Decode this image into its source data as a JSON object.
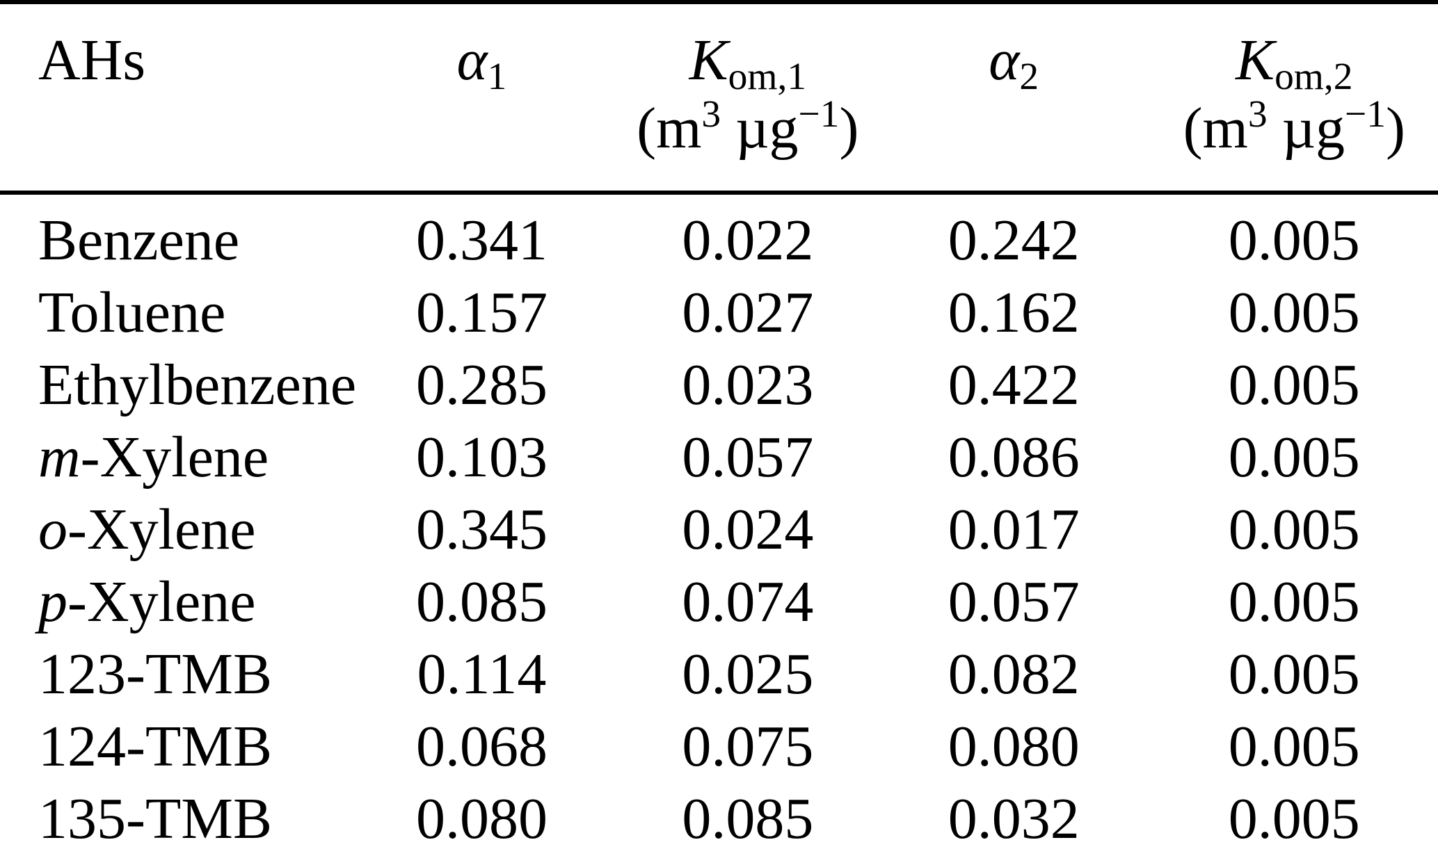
{
  "table": {
    "header": {
      "ahs": "AHs",
      "alpha1": {
        "base": "α",
        "sub": "1"
      },
      "kom1": {
        "base": "K",
        "sub": "om,1"
      },
      "alpha2": {
        "base": "α",
        "sub": "2"
      },
      "kom2": {
        "base": "K",
        "sub": "om,2"
      },
      "unit": {
        "open": "(m",
        "exp": "3",
        "mid": " µg",
        "neg_exp": "−1",
        "close": ")"
      }
    },
    "rows": [
      {
        "prefix": "",
        "rest": "Benzene",
        "alpha1": "0.341",
        "kom1": "0.022",
        "alpha2": "0.242",
        "kom2": "0.005"
      },
      {
        "prefix": "",
        "rest": "Toluene",
        "alpha1": "0.157",
        "kom1": "0.027",
        "alpha2": "0.162",
        "kom2": "0.005"
      },
      {
        "prefix": "",
        "rest": "Ethylbenzene",
        "alpha1": "0.285",
        "kom1": "0.023",
        "alpha2": "0.422",
        "kom2": "0.005"
      },
      {
        "prefix": "m",
        "rest": "-Xylene",
        "alpha1": "0.103",
        "kom1": "0.057",
        "alpha2": "0.086",
        "kom2": "0.005"
      },
      {
        "prefix": "o",
        "rest": "-Xylene",
        "alpha1": "0.345",
        "kom1": "0.024",
        "alpha2": "0.017",
        "kom2": "0.005"
      },
      {
        "prefix": "p",
        "rest": "-Xylene",
        "alpha1": "0.085",
        "kom1": "0.074",
        "alpha2": "0.057",
        "kom2": "0.005"
      },
      {
        "prefix": "",
        "rest": "123-TMB",
        "alpha1": "0.114",
        "kom1": "0.025",
        "alpha2": "0.082",
        "kom2": "0.005"
      },
      {
        "prefix": "",
        "rest": "124-TMB",
        "alpha1": "0.068",
        "kom1": "0.075",
        "alpha2": "0.080",
        "kom2": "0.005"
      },
      {
        "prefix": "",
        "rest": "135-TMB",
        "alpha1": "0.080",
        "kom1": "0.085",
        "alpha2": "0.032",
        "kom2": "0.005"
      }
    ]
  }
}
